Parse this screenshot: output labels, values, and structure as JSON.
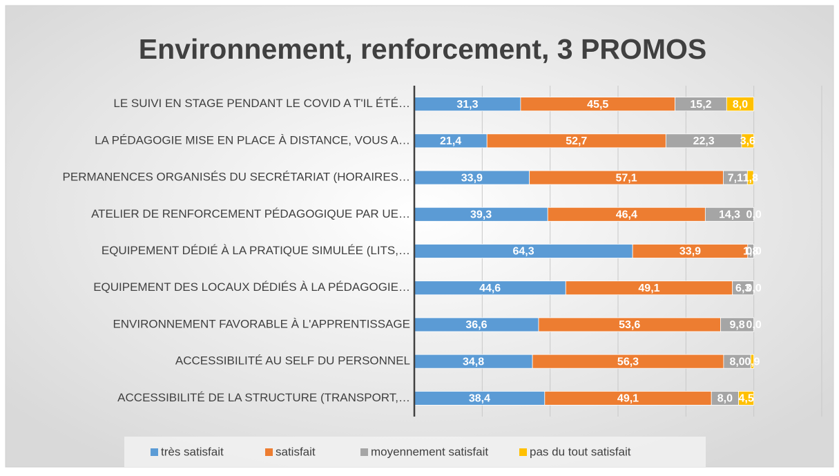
{
  "chart_data": {
    "type": "stacked-barh",
    "title": "Environnement, renforcement, 3 PROMOS",
    "categories": [
      "LE SUIVI EN STAGE PENDANT LE COVID A T'IL ÉTÉ…",
      "LA PÉDAGOGIE MISE EN PLACE À DISTANCE, VOUS A…",
      "PERMANENCES ORGANISÉS DU SECRÉTARIAT (HORAIRES…",
      "ATELIER DE RENFORCEMENT PÉDAGOGIQUE PAR UE…",
      "EQUIPEMENT DÉDIÉ À LA PRATIQUE SIMULÉE (LITS,…",
      "EQUIPEMENT DES LOCAUX DÉDIÉS À LA PÉDAGOGIE…",
      "ENVIRONNEMENT FAVORABLE À L'APPRENTISSAGE",
      "ACCESSIBILITÉ AU SELF DU PERSONNEL",
      "ACCESSIBILITÉ DE LA STRUCTURE (TRANSPORT,…"
    ],
    "series": [
      {
        "name": "très satisfait",
        "color": "#5b9bd5",
        "values": [
          31.3,
          21.4,
          33.9,
          39.3,
          64.3,
          44.6,
          36.6,
          34.8,
          38.4
        ],
        "value_labels": [
          "31,3",
          "21,4",
          "33,9",
          "39,3",
          "64,3",
          "44,6",
          "36,6",
          "34,8",
          "38,4"
        ]
      },
      {
        "name": "satisfait",
        "color": "#ed7d31",
        "values": [
          45.5,
          52.7,
          57.1,
          46.4,
          33.9,
          49.1,
          53.6,
          56.3,
          49.1
        ],
        "value_labels": [
          "45,5",
          "52,7",
          "57,1",
          "46,4",
          "33,9",
          "49,1",
          "53,6",
          "56,3",
          "49,1"
        ]
      },
      {
        "name": "moyennement satisfait",
        "color": "#a5a5a5",
        "values": [
          15.2,
          22.3,
          7.1,
          14.3,
          1.8,
          6.3,
          9.8,
          8,
          8
        ],
        "value_labels": [
          "15,2",
          "22,3",
          "7,1",
          "14,3",
          "1,8",
          "6,3",
          "9,8",
          "8,0",
          "8,0"
        ]
      },
      {
        "name": "pas du tout satisfait",
        "color": "#ffc000",
        "values": [
          8,
          3.6,
          1.8,
          0,
          0,
          0,
          0,
          0.9,
          4.5
        ],
        "value_labels": [
          "8,0",
          "3,6",
          "1,8",
          "0,0",
          "0,0",
          "0,0",
          "0,0",
          "0,9",
          "4,5"
        ]
      }
    ],
    "xlim": [
      0,
      120
    ],
    "xticks": [
      0,
      20,
      40,
      60,
      80,
      100,
      120
    ],
    "grid": true,
    "legend": "bottom"
  }
}
